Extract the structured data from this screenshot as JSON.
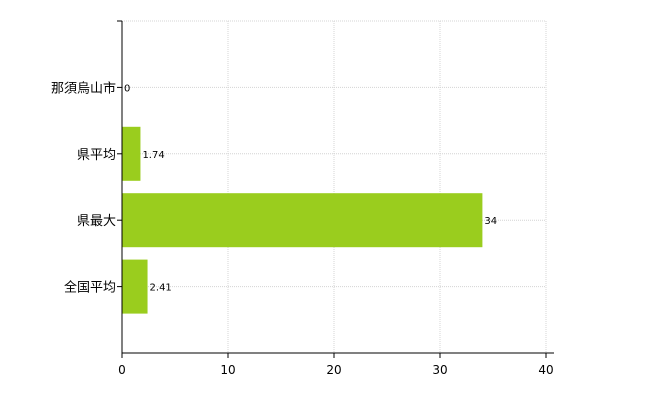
{
  "chart_data": {
    "type": "bar",
    "orientation": "horizontal",
    "categories": [
      "那須烏山市",
      "県平均",
      "県最大",
      "全国平均"
    ],
    "values": [
      0,
      1.74,
      34,
      2.41
    ],
    "data_labels": [
      "0",
      "1.74",
      "34",
      "2.41"
    ],
    "xlim": [
      0,
      40
    ],
    "x_ticks": [
      0,
      10,
      20,
      30,
      40
    ],
    "grid": true,
    "bar_color": "#9acd1e"
  }
}
